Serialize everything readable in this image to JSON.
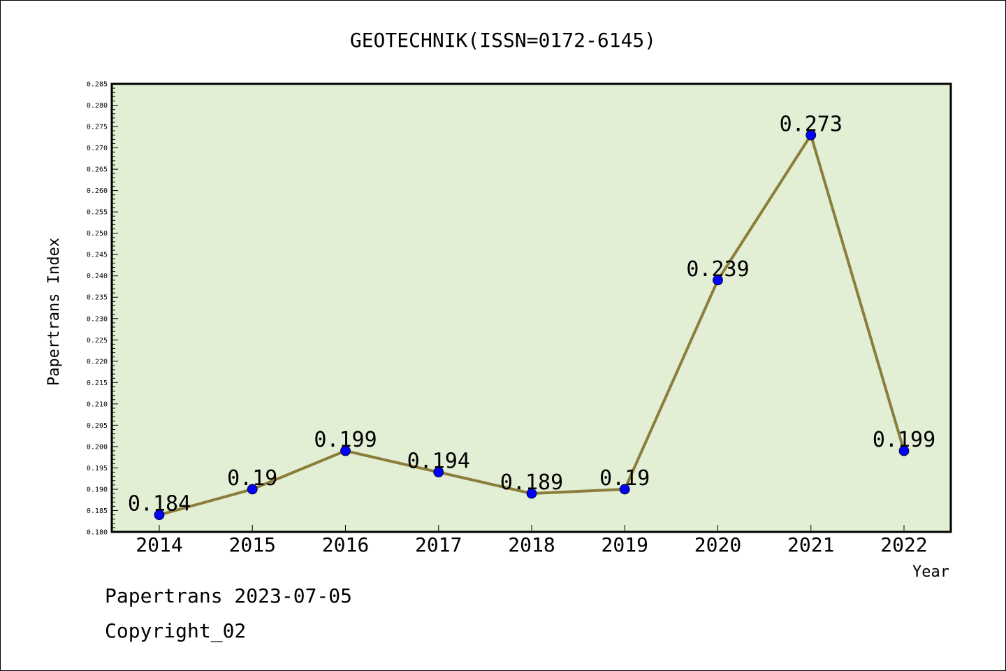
{
  "chart_data": {
    "type": "line",
    "title": "GEOTECHNIK(ISSN=0172-6145)",
    "xlabel": "Year",
    "ylabel": "Papertrans Index",
    "categories": [
      "2014",
      "2015",
      "2016",
      "2017",
      "2018",
      "2019",
      "2020",
      "2021",
      "2022"
    ],
    "values": [
      0.184,
      0.19,
      0.199,
      0.194,
      0.189,
      0.19,
      0.239,
      0.273,
      0.199
    ],
    "data_labels": [
      "0.184",
      "0.19",
      "0.199",
      "0.194",
      "0.189",
      "0.19",
      "0.239",
      "0.273",
      "0.199"
    ],
    "ylim": [
      0.18,
      0.285
    ],
    "yticks": [
      "0.180",
      "0.185",
      "0.190",
      "0.195",
      "0.200",
      "0.205",
      "0.210",
      "0.215",
      "0.220",
      "0.225",
      "0.230",
      "0.235",
      "0.240",
      "0.245",
      "0.250",
      "0.255",
      "0.260",
      "0.265",
      "0.270",
      "0.275",
      "0.280",
      "0.285"
    ],
    "grid": false,
    "colors": {
      "plot_background": "#e2efd5",
      "line": "#8b7d3a",
      "marker": "#0000ff"
    }
  },
  "footer": {
    "line1": "Papertrans 2023-07-05",
    "line2": "Copyright_02"
  }
}
